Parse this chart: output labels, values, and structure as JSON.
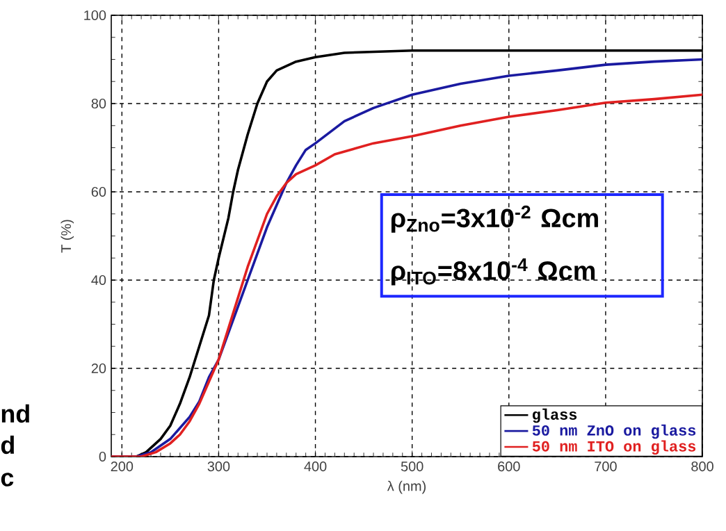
{
  "chart_data": {
    "type": "line",
    "xlabel": "λ (nm)",
    "ylabel": "T (%)",
    "xlim": [
      189,
      800
    ],
    "xticks": [
      200,
      300,
      400,
      500,
      600,
      700,
      800
    ],
    "ylim": [
      0,
      100
    ],
    "yticks": [
      0,
      20,
      40,
      60,
      80,
      100
    ],
    "grid": true,
    "legend": "bottom right",
    "marker": "none",
    "line_style": "solid",
    "annotations": [
      "ρ$_{Zno}$=3x10$^{-2}$ Ωcm",
      "ρ$_{ITO}$=8x10$^{-4}$ Ωcm",
      "nd",
      "d",
      "c"
    ],
    "series": [
      {
        "name": "glass",
        "color": "#000000",
        "x": [
          189,
          215,
          225,
          240,
          250,
          260,
          270,
          280,
          290,
          295,
          300,
          310,
          315,
          320,
          330,
          340,
          350,
          360,
          380,
          400,
          430,
          500,
          600,
          700,
          800
        ],
        "values": [
          0,
          0,
          1,
          4,
          7,
          12,
          18,
          25,
          32,
          40,
          45,
          54,
          60,
          65,
          73,
          80,
          85,
          87.5,
          89.5,
          90.5,
          91.5,
          92,
          92,
          92,
          92
        ]
      },
      {
        "name": "50 nm ZnO on glass",
        "color": "#1a1aa0",
        "x": [
          189,
          215,
          230,
          250,
          270,
          280,
          290,
          300,
          310,
          320,
          330,
          340,
          350,
          360,
          370,
          380,
          390,
          400,
          430,
          460,
          500,
          550,
          600,
          650,
          700,
          750,
          800
        ],
        "values": [
          0,
          0,
          1,
          4,
          9,
          12.5,
          18,
          22,
          28,
          34,
          40,
          46,
          52,
          57,
          62,
          66,
          69.5,
          71,
          76,
          79,
          82,
          84.5,
          86.3,
          87.5,
          88.8,
          89.5,
          90
        ]
      },
      {
        "name": "50 nm ITO on glass",
        "color": "#e02020",
        "x": [
          189,
          220,
          235,
          250,
          260,
          270,
          280,
          290,
          300,
          310,
          320,
          330,
          340,
          350,
          360,
          370,
          380,
          400,
          420,
          460,
          500,
          550,
          600,
          650,
          700,
          750,
          800
        ],
        "values": [
          0,
          0,
          1,
          3,
          5,
          8,
          12,
          17,
          22,
          29,
          36,
          43,
          49,
          55,
          59,
          62,
          64,
          66,
          68.5,
          71,
          72.6,
          75,
          77,
          78.5,
          80.2,
          81,
          82
        ]
      }
    ]
  }
}
